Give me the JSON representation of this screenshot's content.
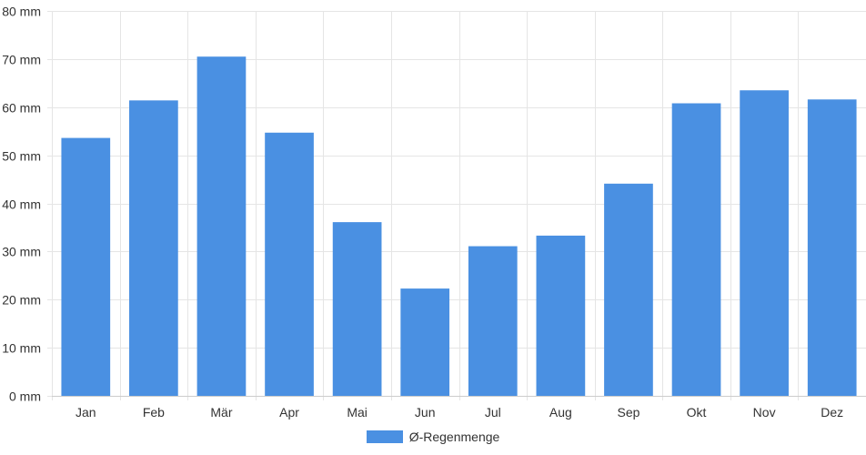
{
  "chart_data": {
    "type": "bar",
    "categories": [
      "Jan",
      "Feb",
      "Mär",
      "Apr",
      "Mai",
      "Jun",
      "Jul",
      "Aug",
      "Sep",
      "Okt",
      "Nov",
      "Dez"
    ],
    "series": [
      {
        "name": "Ø-Regenmenge",
        "values": [
          53.6,
          61.4,
          70.5,
          54.7,
          36.1,
          22.3,
          31.1,
          33.3,
          44.1,
          60.8,
          63.5,
          61.6
        ]
      }
    ],
    "ylim": [
      0,
      80
    ],
    "yticks": [
      0,
      10,
      20,
      30,
      40,
      50,
      60,
      70,
      80
    ],
    "ytick_labels": [
      "0 mm",
      "10 mm",
      "20 mm",
      "30 mm",
      "40 mm",
      "50 mm",
      "60 mm",
      "70 mm",
      "80 mm"
    ],
    "grid": true,
    "legend_position": "bottom",
    "colors": {
      "bar": "#4a90e2",
      "grid": "#e5e5e5",
      "axis": "#cccccc"
    }
  },
  "legend": {
    "label": "Ø-Regenmenge"
  }
}
